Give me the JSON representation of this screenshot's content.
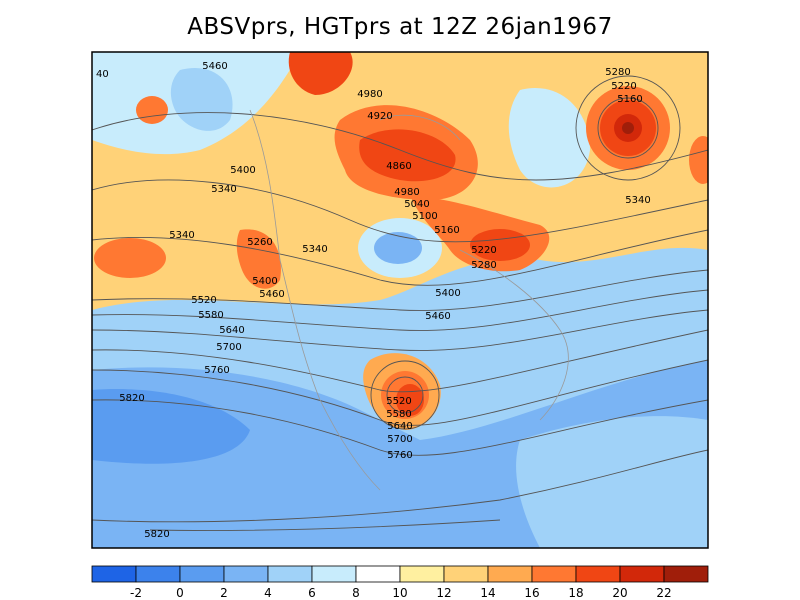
{
  "title": "ABSVprs, HGTprs at 12Z  26jan1967",
  "map": {
    "variables": [
      "ABSVprs",
      "HGTprs"
    ],
    "time": "12Z",
    "date": "26jan1967",
    "height_contour_labels": [
      "5460",
      "5280",
      "4980",
      "4920",
      "5220",
      "5160",
      "4860",
      "5400",
      "5340",
      "4980",
      "5040",
      "5100",
      "5160",
      "5340",
      "5260",
      "5340",
      "5220",
      "5280",
      "5400",
      "5340",
      "5460",
      "5400",
      "5520",
      "5580",
      "5460",
      "5640",
      "5700",
      "5760",
      "5820",
      "5520",
      "5580",
      "5640",
      "5700",
      "5760",
      "5820"
    ],
    "edge_label": "40"
  },
  "colorbar": {
    "tick_labels": [
      "-2",
      "0",
      "2",
      "4",
      "6",
      "8",
      "10",
      "12",
      "14",
      "16",
      "18",
      "20",
      "22"
    ],
    "colors": [
      "#1e64e6",
      "#3c82ec",
      "#5a9cf0",
      "#7ab4f4",
      "#a0d2f8",
      "#c8ecfc",
      "#ffffff",
      "#fff0a0",
      "#ffd278",
      "#ffaa50",
      "#ff7832",
      "#f04614",
      "#d2280a",
      "#a01e0a"
    ]
  }
}
